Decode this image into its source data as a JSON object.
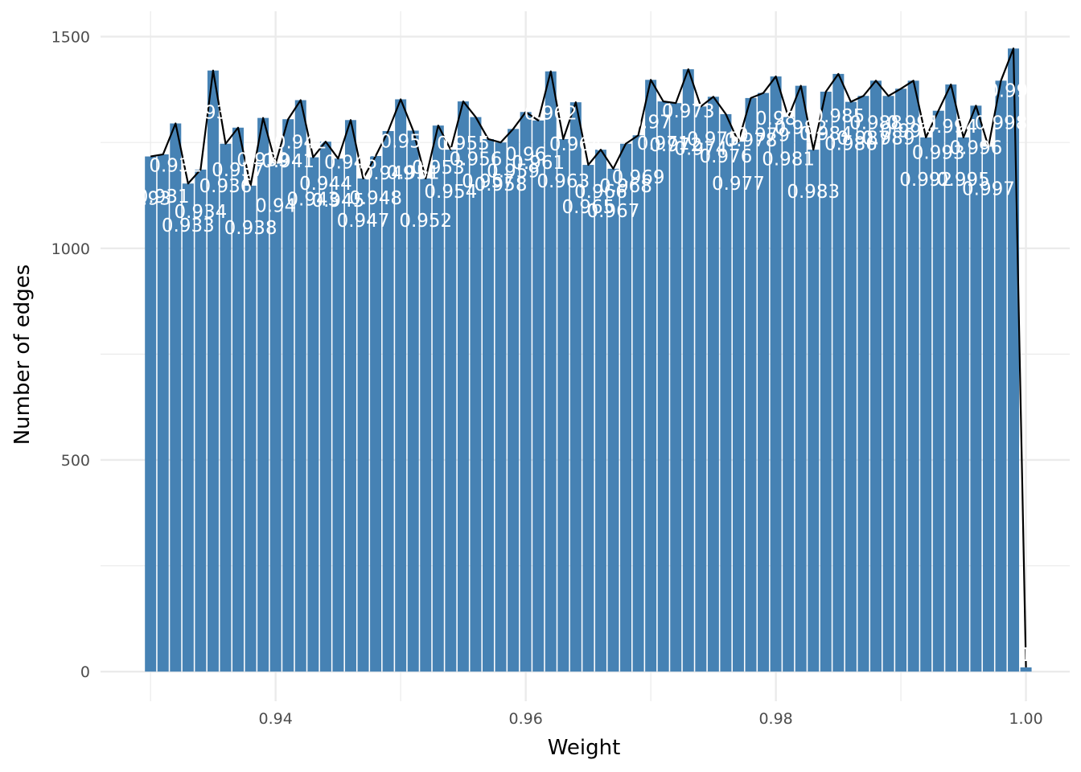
{
  "chart_data": {
    "type": "bar",
    "title": "",
    "xlabel": "Weight",
    "ylabel": "Number of edges",
    "xlim": [
      0.926,
      1.0035
    ],
    "ylim": [
      -70,
      1560
    ],
    "x_ticks": [
      0.94,
      0.96,
      0.98,
      1.0
    ],
    "x_tick_labels": [
      "0.94",
      "0.96",
      "0.98",
      "1.00"
    ],
    "x_minor_ticks": [
      0.93,
      0.95,
      0.97,
      0.99
    ],
    "y_ticks": [
      0,
      500,
      1000,
      1500
    ],
    "y_tick_labels": [
      "0",
      "500",
      "1000",
      "1500"
    ],
    "y_minor_ticks": [
      250,
      750,
      1250
    ],
    "grid": true,
    "legend": "none",
    "bar_color": "#4682B4",
    "line_color": "#000000",
    "label_color": "#ffffff",
    "overlay_line": true,
    "bin_width": 0.001,
    "x": [
      0.93,
      0.931,
      0.932,
      0.933,
      0.934,
      0.935,
      0.936,
      0.937,
      0.938,
      0.939,
      0.94,
      0.941,
      0.942,
      0.943,
      0.944,
      0.945,
      0.946,
      0.947,
      0.948,
      0.949,
      0.95,
      0.951,
      0.952,
      0.953,
      0.954,
      0.955,
      0.956,
      0.957,
      0.958,
      0.959,
      0.96,
      0.961,
      0.962,
      0.963,
      0.964,
      0.965,
      0.966,
      0.967,
      0.968,
      0.969,
      0.97,
      0.971,
      0.972,
      0.973,
      0.974,
      0.975,
      0.976,
      0.977,
      0.978,
      0.979,
      0.98,
      0.981,
      0.982,
      0.983,
      0.984,
      0.985,
      0.986,
      0.987,
      0.988,
      0.989,
      0.99,
      0.991,
      0.992,
      0.993,
      0.994,
      0.995,
      0.996,
      0.997,
      0.998,
      0.999,
      1.0
    ],
    "values": [
      1217,
      1222,
      1295,
      1153,
      1186,
      1420,
      1247,
      1285,
      1148,
      1308,
      1200,
      1305,
      1350,
      1215,
      1252,
      1212,
      1303,
      1165,
      1218,
      1277,
      1352,
      1278,
      1165,
      1290,
      1233,
      1347,
      1310,
      1258,
      1250,
      1282,
      1322,
      1302,
      1418,
      1258,
      1345,
      1197,
      1233,
      1188,
      1247,
      1267,
      1398,
      1347,
      1343,
      1423,
      1335,
      1358,
      1317,
      1252,
      1355,
      1367,
      1406,
      1310,
      1384,
      1233,
      1370,
      1412,
      1346,
      1360,
      1396,
      1360,
      1377,
      1396,
      1262,
      1325,
      1387,
      1262,
      1337,
      1240,
      1396,
      1472,
      10
    ],
    "labels": [
      "0.93",
      "0.931",
      "0.932",
      "0.933",
      "0.934",
      "0.935",
      "0.936",
      "0.937",
      "0.938",
      "0.939",
      "0.94",
      "0.941",
      "0.942",
      "0.943",
      "0.944",
      "0.945",
      "0.946",
      "0.947",
      "0.948",
      "0.949",
      "0.95",
      "0.951",
      "0.952",
      "0.953",
      "0.954",
      "0.955",
      "0.956",
      "0.957",
      "0.958",
      "0.959",
      "0.96",
      "0.961",
      "0.962",
      "0.963",
      "0.964",
      "0.965",
      "0.966",
      "0.967",
      "0.968",
      "0.969",
      "0.97",
      "0.971",
      "0.972",
      "0.973",
      "0.974",
      "0.975",
      "0.976",
      "0.977",
      "0.978",
      "0.979",
      "0.98",
      "0.981",
      "0.982",
      "0.983",
      "0.984",
      "0.985",
      "0.986",
      "0.987",
      "0.988",
      "0.989",
      "0.99",
      "0.991",
      "0.992",
      "0.993",
      "0.994",
      "0.995",
      "0.996",
      "0.997",
      "0.998",
      "0.999",
      "1"
    ]
  }
}
